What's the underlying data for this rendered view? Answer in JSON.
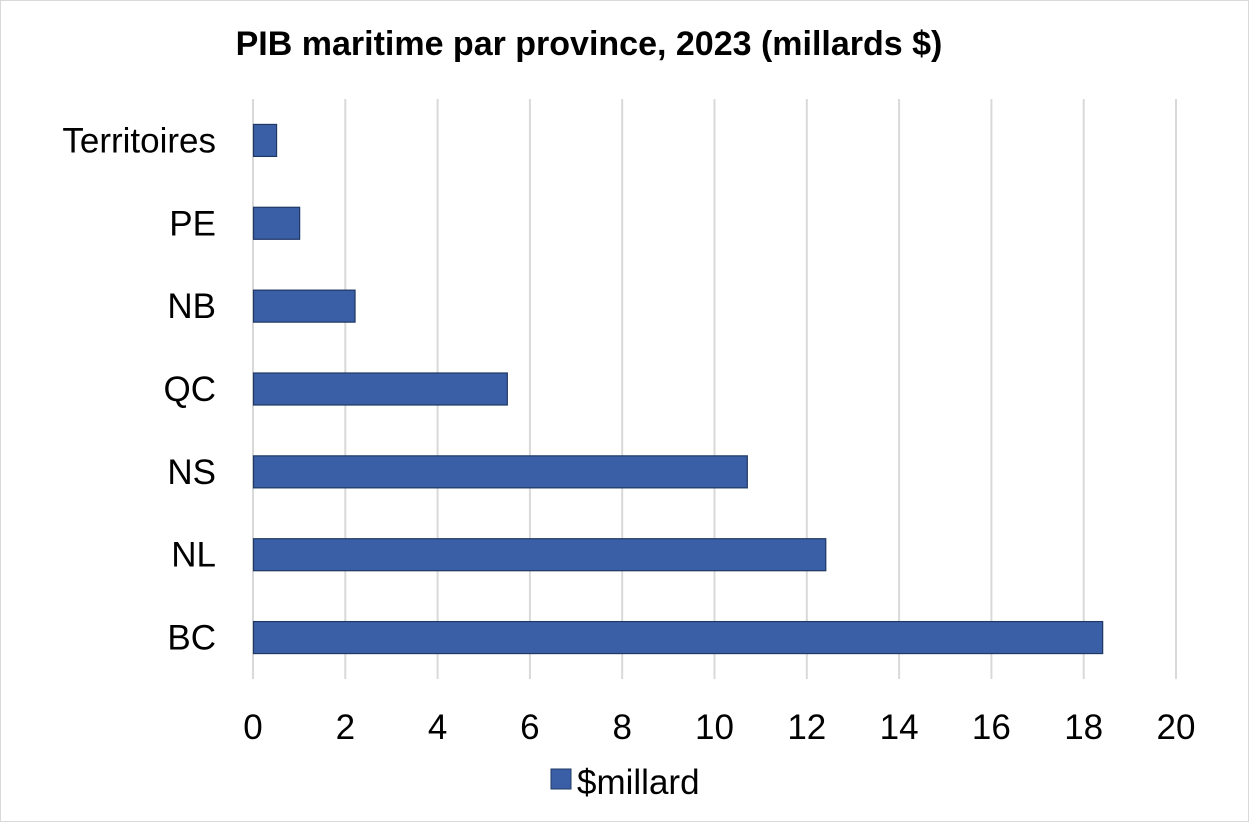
{
  "colors": {
    "bar_fill": "#3A5FA6",
    "bar_stroke": "#1F3864",
    "gridline": "#D9D9D9",
    "frame": "#D9D9D9"
  },
  "chart_data": {
    "type": "bar",
    "orientation": "horizontal",
    "title": "PIB maritime par province, 2023 (millards $)",
    "categories": [
      "BC",
      "NL",
      "NS",
      "QC",
      "NB",
      "PE",
      "Territoires"
    ],
    "series": [
      {
        "name": "$millard",
        "values": [
          18.4,
          12.4,
          10.7,
          5.5,
          2.2,
          1.0,
          0.5
        ]
      }
    ],
    "xlim": [
      0,
      20
    ],
    "x_ticks": [
      0,
      2,
      4,
      6,
      8,
      10,
      12,
      14,
      16,
      18,
      20
    ],
    "xlabel": "",
    "ylabel": "",
    "grid": "vertical",
    "legend": {
      "position": "bottom",
      "entries": [
        "$millard"
      ]
    }
  }
}
